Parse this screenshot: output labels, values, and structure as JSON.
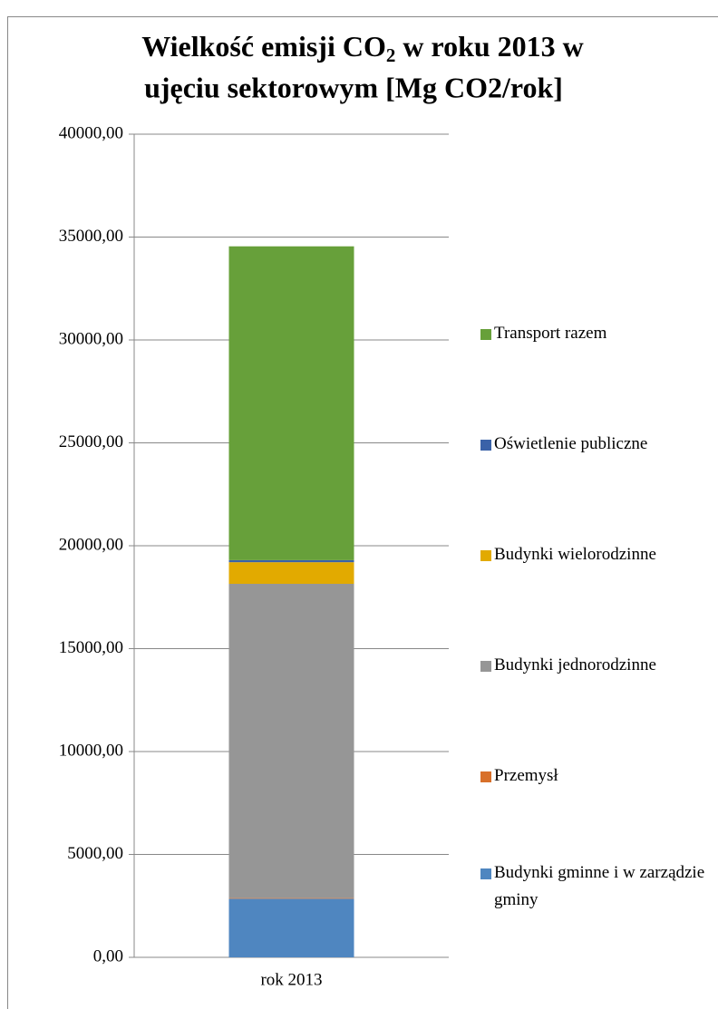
{
  "chart_data": {
    "type": "stacked_bar",
    "title": {
      "line1_start": "Wielkość  emisji CO",
      "line1_sub": "2",
      "line1_end": " w roku  2013 w",
      "line2": "ujęciu sektorowym  [Mg CO2/rok]"
    },
    "categories": [
      "rok 2013"
    ],
    "series": [
      {
        "name": "Budynki gminne i w zarządzie gminy",
        "color": "#4f86c0",
        "values": [
          2850
        ]
      },
      {
        "name": "Przemysł",
        "color": "#d8702a",
        "values": [
          30
        ]
      },
      {
        "name": "Budynki jednorodzinne",
        "color": "#969696",
        "values": [
          15270
        ]
      },
      {
        "name": "Budynki wielorodzinne",
        "color": "#e2aa00",
        "values": [
          1050
        ]
      },
      {
        "name": "Oświetlenie publiczne",
        "color": "#3a62a8",
        "values": [
          100
        ]
      },
      {
        "name": "Transport razem",
        "color": "#67a03a",
        "values": [
          15250
        ]
      }
    ],
    "ylim": [
      0,
      40000
    ],
    "yticks": [
      {
        "value": 0,
        "label": "0,00"
      },
      {
        "value": 5000,
        "label": "5000,00"
      },
      {
        "value": 10000,
        "label": "10000,00"
      },
      {
        "value": 15000,
        "label": "15000,00"
      },
      {
        "value": 20000,
        "label": "20000,00"
      },
      {
        "value": 25000,
        "label": "25000,00"
      },
      {
        "value": 30000,
        "label": "30000,00"
      },
      {
        "value": 35000,
        "label": "35000,00"
      },
      {
        "value": 40000,
        "label": "40000,00"
      }
    ],
    "grid": true,
    "legend": "right"
  }
}
